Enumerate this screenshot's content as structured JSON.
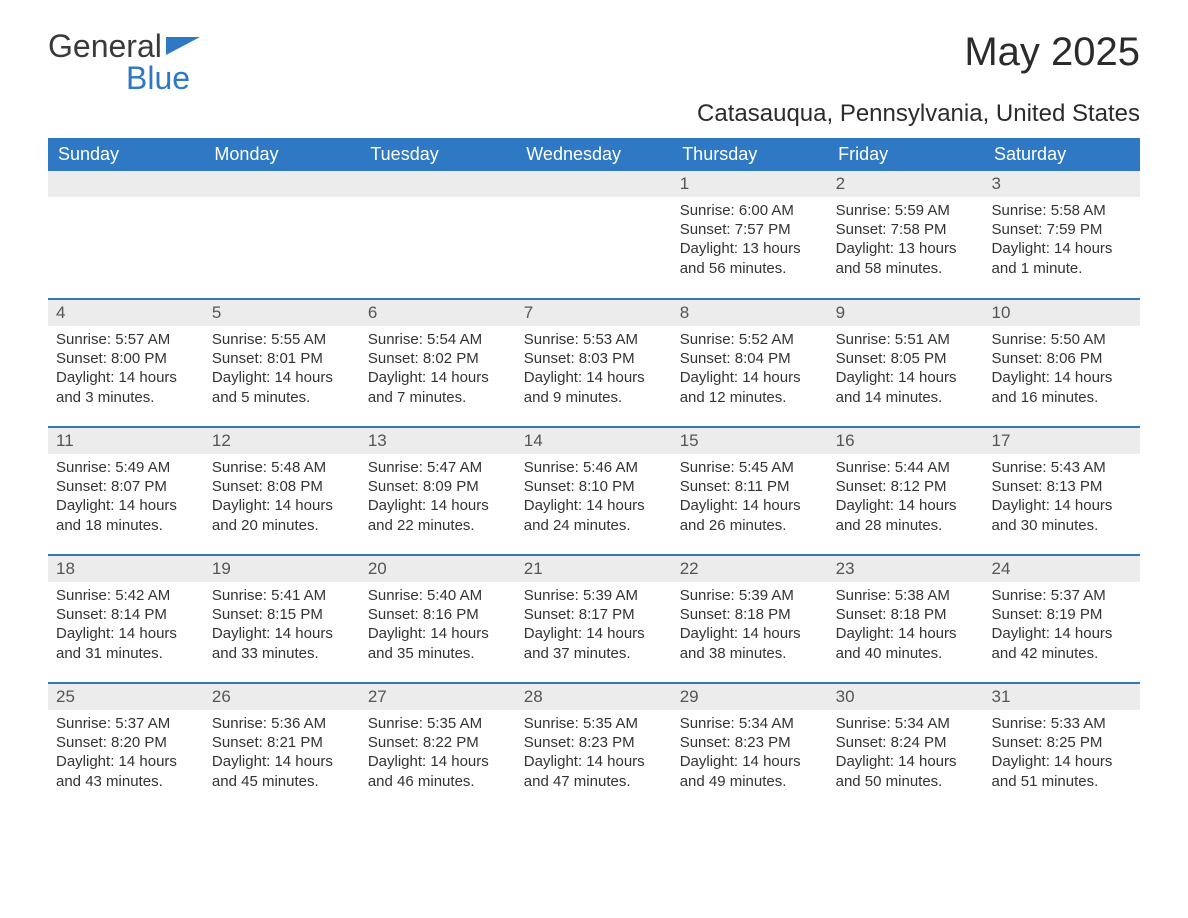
{
  "logo": {
    "general": "General",
    "blue": "Blue"
  },
  "title": "May 2025",
  "location": "Catasauqua, Pennsylvania, United States",
  "weekdays": [
    "Sunday",
    "Monday",
    "Tuesday",
    "Wednesday",
    "Thursday",
    "Friday",
    "Saturday"
  ],
  "colors": {
    "header_bg": "#2f78c4",
    "header_fg": "#ffffff",
    "daynum_bg": "#ececec",
    "text": "#333333",
    "border": "#2f78c4"
  },
  "month_start_weekday": 4,
  "days_in_month": 31,
  "days": {
    "1": {
      "sunrise": "6:00 AM",
      "sunset": "7:57 PM",
      "daylight": "13 hours and 56 minutes."
    },
    "2": {
      "sunrise": "5:59 AM",
      "sunset": "7:58 PM",
      "daylight": "13 hours and 58 minutes."
    },
    "3": {
      "sunrise": "5:58 AM",
      "sunset": "7:59 PM",
      "daylight": "14 hours and 1 minute."
    },
    "4": {
      "sunrise": "5:57 AM",
      "sunset": "8:00 PM",
      "daylight": "14 hours and 3 minutes."
    },
    "5": {
      "sunrise": "5:55 AM",
      "sunset": "8:01 PM",
      "daylight": "14 hours and 5 minutes."
    },
    "6": {
      "sunrise": "5:54 AM",
      "sunset": "8:02 PM",
      "daylight": "14 hours and 7 minutes."
    },
    "7": {
      "sunrise": "5:53 AM",
      "sunset": "8:03 PM",
      "daylight": "14 hours and 9 minutes."
    },
    "8": {
      "sunrise": "5:52 AM",
      "sunset": "8:04 PM",
      "daylight": "14 hours and 12 minutes."
    },
    "9": {
      "sunrise": "5:51 AM",
      "sunset": "8:05 PM",
      "daylight": "14 hours and 14 minutes."
    },
    "10": {
      "sunrise": "5:50 AM",
      "sunset": "8:06 PM",
      "daylight": "14 hours and 16 minutes."
    },
    "11": {
      "sunrise": "5:49 AM",
      "sunset": "8:07 PM",
      "daylight": "14 hours and 18 minutes."
    },
    "12": {
      "sunrise": "5:48 AM",
      "sunset": "8:08 PM",
      "daylight": "14 hours and 20 minutes."
    },
    "13": {
      "sunrise": "5:47 AM",
      "sunset": "8:09 PM",
      "daylight": "14 hours and 22 minutes."
    },
    "14": {
      "sunrise": "5:46 AM",
      "sunset": "8:10 PM",
      "daylight": "14 hours and 24 minutes."
    },
    "15": {
      "sunrise": "5:45 AM",
      "sunset": "8:11 PM",
      "daylight": "14 hours and 26 minutes."
    },
    "16": {
      "sunrise": "5:44 AM",
      "sunset": "8:12 PM",
      "daylight": "14 hours and 28 minutes."
    },
    "17": {
      "sunrise": "5:43 AM",
      "sunset": "8:13 PM",
      "daylight": "14 hours and 30 minutes."
    },
    "18": {
      "sunrise": "5:42 AM",
      "sunset": "8:14 PM",
      "daylight": "14 hours and 31 minutes."
    },
    "19": {
      "sunrise": "5:41 AM",
      "sunset": "8:15 PM",
      "daylight": "14 hours and 33 minutes."
    },
    "20": {
      "sunrise": "5:40 AM",
      "sunset": "8:16 PM",
      "daylight": "14 hours and 35 minutes."
    },
    "21": {
      "sunrise": "5:39 AM",
      "sunset": "8:17 PM",
      "daylight": "14 hours and 37 minutes."
    },
    "22": {
      "sunrise": "5:39 AM",
      "sunset": "8:18 PM",
      "daylight": "14 hours and 38 minutes."
    },
    "23": {
      "sunrise": "5:38 AM",
      "sunset": "8:18 PM",
      "daylight": "14 hours and 40 minutes."
    },
    "24": {
      "sunrise": "5:37 AM",
      "sunset": "8:19 PM",
      "daylight": "14 hours and 42 minutes."
    },
    "25": {
      "sunrise": "5:37 AM",
      "sunset": "8:20 PM",
      "daylight": "14 hours and 43 minutes."
    },
    "26": {
      "sunrise": "5:36 AM",
      "sunset": "8:21 PM",
      "daylight": "14 hours and 45 minutes."
    },
    "27": {
      "sunrise": "5:35 AM",
      "sunset": "8:22 PM",
      "daylight": "14 hours and 46 minutes."
    },
    "28": {
      "sunrise": "5:35 AM",
      "sunset": "8:23 PM",
      "daylight": "14 hours and 47 minutes."
    },
    "29": {
      "sunrise": "5:34 AM",
      "sunset": "8:23 PM",
      "daylight": "14 hours and 49 minutes."
    },
    "30": {
      "sunrise": "5:34 AM",
      "sunset": "8:24 PM",
      "daylight": "14 hours and 50 minutes."
    },
    "31": {
      "sunrise": "5:33 AM",
      "sunset": "8:25 PM",
      "daylight": "14 hours and 51 minutes."
    }
  },
  "labels": {
    "sunrise": "Sunrise: ",
    "sunset": "Sunset: ",
    "daylight": "Daylight: "
  }
}
